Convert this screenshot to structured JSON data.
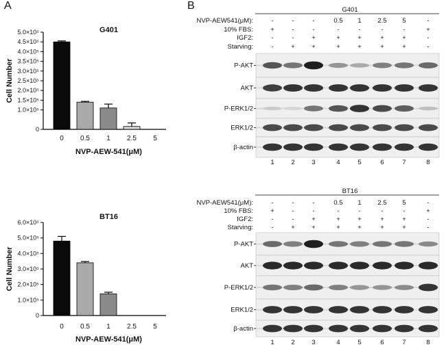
{
  "panels": {
    "left_letter": "A",
    "right_letter": "B"
  },
  "chart_data": [
    {
      "type": "bar",
      "title": "G401",
      "xlabel": "NVP-AEW-541(μM)",
      "ylabel": "Cell Number",
      "categories": [
        "0",
        "0.5",
        "1",
        "2.5",
        "5"
      ],
      "values": [
        450000,
        140000,
        110000,
        15000,
        0
      ],
      "errors": [
        5000,
        4000,
        20000,
        18000,
        0
      ],
      "bar_colors": [
        "#0a0a0a",
        "#a9a9a9",
        "#8a8a8a",
        "#d4d4d4",
        "#ffffff"
      ],
      "ylim": [
        0,
        500000
      ],
      "yticks": [
        0,
        100000,
        150000,
        200000,
        250000,
        300000,
        350000,
        400000,
        450000,
        500000
      ],
      "ytick_labels": [
        "0",
        "1.0×10⁵",
        "1.5×10⁵",
        "2.0×10⁵",
        "2.5×10⁵",
        "3.0×10⁵",
        "3.5×10⁵",
        "4.0×10⁵",
        "4.5×10⁵",
        "5.0×10⁵"
      ],
      "grid": false
    },
    {
      "type": "bar",
      "title": "BT16",
      "xlabel": "NVP-AEW-541(μM)",
      "ylabel": "Cell Number",
      "categories": [
        "0",
        "0.5",
        "1",
        "2.5",
        "5"
      ],
      "values": [
        480000,
        340000,
        140000,
        0,
        0
      ],
      "errors": [
        30000,
        8000,
        10000,
        0,
        0
      ],
      "bar_colors": [
        "#0a0a0a",
        "#a9a9a9",
        "#8a8a8a",
        "#d4d4d4",
        "#ffffff"
      ],
      "ylim": [
        0,
        600000
      ],
      "yticks": [
        0,
        100000,
        200000,
        300000,
        400000,
        500000,
        600000
      ],
      "ytick_labels": [
        "0",
        "1.0×10⁵",
        "2.0×10⁵",
        "3.0×10⁵",
        "4.0×10⁵",
        "5.0×10⁵",
        "6.0×10⁵"
      ],
      "grid": false
    }
  ],
  "blots": [
    {
      "cell_line": "G401",
      "condition_rows": [
        {
          "label": "NVP-AEW541(μM):",
          "values": [
            "-",
            "-",
            "-",
            "0.5",
            "1",
            "2.5",
            "5",
            "-"
          ]
        },
        {
          "label": "10% FBS:",
          "values": [
            "+",
            "-",
            "-",
            "-",
            "-",
            "-",
            "-",
            "+"
          ]
        },
        {
          "label": "IGF2:",
          "values": [
            "-",
            "-",
            "+",
            "+",
            "+",
            "+",
            "+",
            "-"
          ]
        },
        {
          "label": "Starving:",
          "values": [
            "-",
            "+",
            "+",
            "+",
            "+",
            "+",
            "+",
            "-"
          ]
        }
      ],
      "bands": [
        {
          "label": "P-AKT",
          "intensity": [
            0.7,
            0.55,
            0.95,
            0.4,
            0.3,
            0.5,
            0.55,
            0.6
          ]
        },
        {
          "label": "AKT",
          "intensity": [
            0.8,
            0.85,
            0.85,
            0.85,
            0.85,
            0.85,
            0.85,
            0.85
          ]
        },
        {
          "label": "P-ERK1/2",
          "intensity": [
            0.15,
            0.1,
            0.55,
            0.7,
            0.85,
            0.75,
            0.65,
            0.2
          ]
        },
        {
          "label": "ERK1/2",
          "intensity": [
            0.75,
            0.75,
            0.75,
            0.75,
            0.75,
            0.75,
            0.75,
            0.75
          ]
        },
        {
          "label": "β-actin",
          "intensity": [
            0.85,
            0.85,
            0.85,
            0.85,
            0.85,
            0.85,
            0.85,
            0.85
          ]
        }
      ],
      "lane_numbers": [
        "1",
        "2",
        "3",
        "4",
        "5",
        "6",
        "7",
        "8"
      ]
    },
    {
      "cell_line": "BT16",
      "condition_rows": [
        {
          "label": "NVP-AEW541(μM):",
          "values": [
            "-",
            "-",
            "-",
            "0.5",
            "1",
            "2.5",
            "5",
            "-"
          ]
        },
        {
          "label": "10% FBS:",
          "values": [
            "+",
            "-",
            "-",
            "-",
            "-",
            "-",
            "-",
            "+"
          ]
        },
        {
          "label": "IGF2:",
          "values": [
            "-",
            "-",
            "+",
            "+",
            "+",
            "+",
            "+",
            "-"
          ]
        },
        {
          "label": "Starving:",
          "values": [
            "-",
            "+",
            "+",
            "+",
            "+",
            "+",
            "+",
            "-"
          ]
        }
      ],
      "bands": [
        {
          "label": "P-AKT",
          "intensity": [
            0.6,
            0.5,
            0.95,
            0.55,
            0.5,
            0.55,
            0.55,
            0.45
          ]
        },
        {
          "label": "AKT",
          "intensity": [
            0.9,
            0.9,
            0.9,
            0.9,
            0.9,
            0.9,
            0.9,
            0.9
          ]
        },
        {
          "label": "P-ERK1/2",
          "intensity": [
            0.55,
            0.5,
            0.6,
            0.5,
            0.4,
            0.4,
            0.45,
            0.85
          ]
        },
        {
          "label": "ERK1/2",
          "intensity": [
            0.85,
            0.85,
            0.85,
            0.85,
            0.85,
            0.85,
            0.85,
            0.85
          ]
        },
        {
          "label": "β-actin",
          "intensity": [
            0.85,
            0.85,
            0.85,
            0.85,
            0.85,
            0.85,
            0.85,
            0.85
          ]
        }
      ],
      "lane_numbers": [
        "1",
        "2",
        "3",
        "4",
        "5",
        "6",
        "7",
        "8"
      ]
    }
  ]
}
